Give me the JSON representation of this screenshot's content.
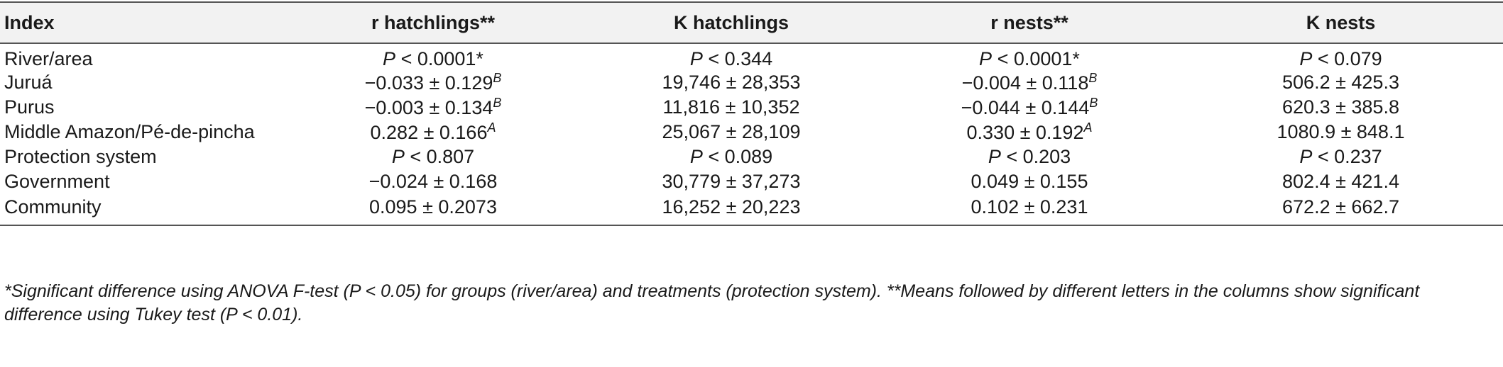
{
  "table": {
    "headers": [
      "Index",
      "r hatchlings**",
      "K hatchlings",
      "r nests**",
      "K nests"
    ],
    "rows": [
      {
        "label": "River/area",
        "cells": [
          {
            "p": "P",
            "rest": " < 0.0001*"
          },
          {
            "p": "P",
            "rest": " < 0.344"
          },
          {
            "p": "P",
            "rest": " < 0.0001*"
          },
          {
            "p": "P",
            "rest": " < 0.079"
          }
        ]
      },
      {
        "label": "Juruá",
        "cells": [
          {
            "text": "−0.033 ± 0.129",
            "sup": "B"
          },
          {
            "text": "19,746 ± 28,353"
          },
          {
            "text": "−0.004 ± 0.118",
            "sup": "B"
          },
          {
            "text": "506.2 ± 425.3"
          }
        ]
      },
      {
        "label": "Purus",
        "cells": [
          {
            "text": "−0.003 ± 0.134",
            "sup": "B"
          },
          {
            "text": "11,816 ± 10,352"
          },
          {
            "text": "−0.044 ± 0.144",
            "sup": "B"
          },
          {
            "text": "620.3 ± 385.8"
          }
        ]
      },
      {
        "label": "Middle Amazon/Pé-de-pincha",
        "cells": [
          {
            "text": "0.282 ± 0.166",
            "sup": "A"
          },
          {
            "text": "25,067 ± 28,109"
          },
          {
            "text": "0.330 ± 0.192",
            "sup": "A"
          },
          {
            "text": "1080.9 ± 848.1"
          }
        ]
      },
      {
        "label": "Protection system",
        "cells": [
          {
            "p": "P",
            "rest": " < 0.807"
          },
          {
            "p": "P",
            "rest": " < 0.089"
          },
          {
            "p": "P",
            "rest": " < 0.203"
          },
          {
            "p": "P",
            "rest": " < 0.237"
          }
        ]
      },
      {
        "label": "Government",
        "cells": [
          {
            "text": "−0.024 ± 0.168"
          },
          {
            "text": "30,779 ± 37,273"
          },
          {
            "text": "0.049 ± 0.155"
          },
          {
            "text": "802.4 ± 421.4"
          }
        ]
      },
      {
        "label": "Community",
        "cells": [
          {
            "text": "0.095 ± 0.2073"
          },
          {
            "text": "16,252 ± 20,223"
          },
          {
            "text": "0.102 ± 0.231"
          },
          {
            "text": "672.2 ± 662.7"
          }
        ]
      }
    ]
  },
  "footnote": "*Significant difference using ANOVA F-test (P < 0.05) for groups (river/area) and treatments (protection system). **Means followed by different letters in the columns show significant difference using Tukey test (P < 0.01)."
}
